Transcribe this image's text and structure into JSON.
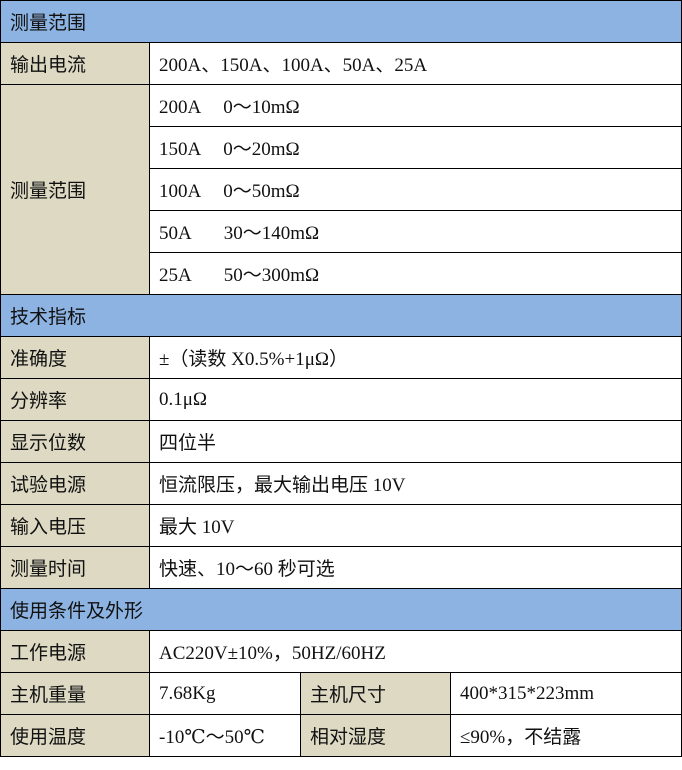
{
  "sections": {
    "range": "测量范围",
    "tech": "技术指标",
    "usage": "使用条件及外形"
  },
  "output_current": {
    "label": "输出电流",
    "value": "200A、150A、100A、50A、25A"
  },
  "measure_range": {
    "label": "测量范围",
    "rows": [
      {
        "current": "200A",
        "range": "0～10mΩ"
      },
      {
        "current": "150A",
        "range": "0～20mΩ"
      },
      {
        "current": "100A",
        "range": "0～50mΩ"
      },
      {
        "current": "50A",
        "range": "30～140mΩ"
      },
      {
        "current": "25A",
        "range": "50～300mΩ"
      }
    ]
  },
  "tech_rows": [
    {
      "label": "准确度",
      "value": "±（读数 X0.5%+1μΩ）"
    },
    {
      "label": "分辨率",
      "value": "0.1μΩ"
    },
    {
      "label": "显示位数",
      "value": "四位半"
    },
    {
      "label": "试验电源",
      "value": "恒流限压，最大输出电压 10V"
    },
    {
      "label": "输入电压",
      "value": "最大 10V"
    },
    {
      "label": "测量时间",
      "value": "快速、10～60 秒可选"
    }
  ],
  "power": {
    "label": "工作电源",
    "value": "AC220V±10%，50HZ/60HZ"
  },
  "weight": {
    "label": "主机重量",
    "value": "7.68Kg"
  },
  "size": {
    "label": "主机尺寸",
    "value": "400*315*223mm"
  },
  "temp": {
    "label": "使用温度",
    "value": "-10℃～50℃"
  },
  "humidity": {
    "label": "相对湿度",
    "value": "≤90%，不结露"
  },
  "colors": {
    "section_bg": "#8DB3E2",
    "label_bg": "#DDD9C3"
  }
}
